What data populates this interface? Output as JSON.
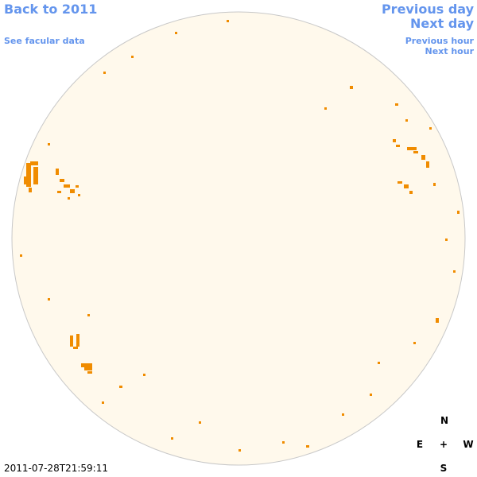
{
  "links": {
    "back": "Back to 2011",
    "facular": "See facular data",
    "previous_day": "Previous day",
    "next_day": "Next day",
    "previous_hour": "Previous hour",
    "next_hour": "Next hour"
  },
  "timestamp": "2011-07-28T21:59:11",
  "compass": {
    "north": "N",
    "east": "E",
    "center": "+",
    "west": "W",
    "south": "S"
  }
}
